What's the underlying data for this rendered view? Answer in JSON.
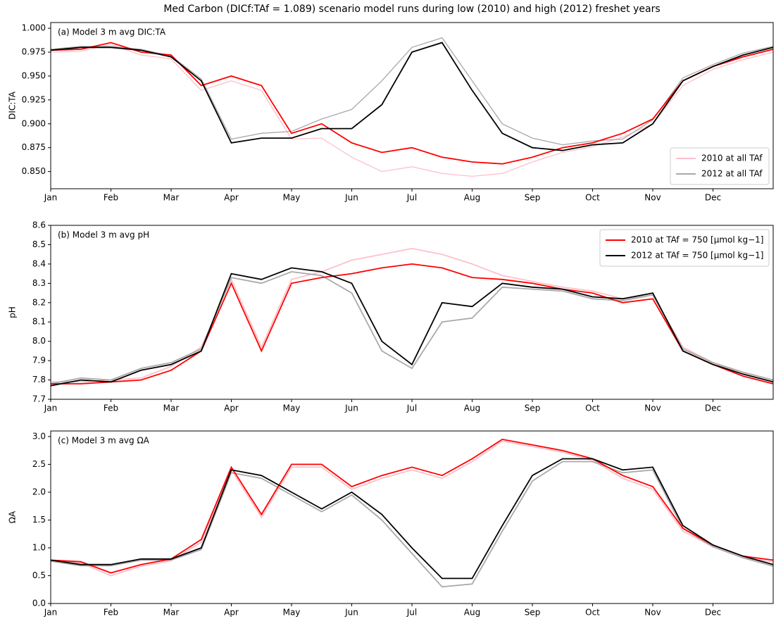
{
  "chart_data": [
    {
      "type": "line",
      "title": "Med Carbon (DICf:TAf = 1.089) scenario model runs during low (2010) and high (2012) freshet years",
      "annotation": "(a) Model 3 m avg DIC:TA",
      "ylabel": "DIC:TA",
      "x": [
        0,
        0.5,
        1,
        1.5,
        2,
        2.5,
        3,
        3.5,
        4,
        4.5,
        5,
        5.5,
        6,
        6.5,
        7,
        7.5,
        8,
        8.5,
        9,
        9.5,
        10,
        10.5,
        11,
        11.5,
        12
      ],
      "xlim": [
        0,
        12
      ],
      "xticks": [
        {
          "value": 0,
          "label": "Jan"
        },
        {
          "value": 1,
          "label": "Feb"
        },
        {
          "value": 2,
          "label": "Mar"
        },
        {
          "value": 3,
          "label": "Apr"
        },
        {
          "value": 4,
          "label": "May"
        },
        {
          "value": 5,
          "label": "Jun"
        },
        {
          "value": 6,
          "label": "Jul"
        },
        {
          "value": 7,
          "label": "Aug"
        },
        {
          "value": 8,
          "label": "Sep"
        },
        {
          "value": 9,
          "label": "Oct"
        },
        {
          "value": 10,
          "label": "Nov"
        },
        {
          "value": 11,
          "label": "Dec"
        }
      ],
      "ylim": [
        0.832,
        1.006
      ],
      "yticks": [
        {
          "value": 0.85,
          "label": "0.850"
        },
        {
          "value": 0.875,
          "label": "0.875"
        },
        {
          "value": 0.9,
          "label": "0.900"
        },
        {
          "value": 0.925,
          "label": "0.925"
        },
        {
          "value": 0.95,
          "label": "0.950"
        },
        {
          "value": 0.975,
          "label": "0.975"
        },
        {
          "value": 1.0,
          "label": "1.000"
        }
      ],
      "legend": "lower right",
      "series": [
        {
          "name": "2010 at all TAf",
          "color": "#ffc0cb",
          "values": [
            0.975,
            0.976,
            0.983,
            0.972,
            0.968,
            0.935,
            0.945,
            0.935,
            0.884,
            0.885,
            0.865,
            0.85,
            0.855,
            0.848,
            0.845,
            0.848,
            0.86,
            0.87,
            0.876,
            0.886,
            0.9,
            0.94,
            0.957,
            0.967,
            0.975
          ]
        },
        {
          "name": "2012 at all TAf",
          "color": "#a9a9a9",
          "values": [
            0.978,
            0.981,
            0.981,
            0.978,
            0.971,
            0.947,
            0.884,
            0.89,
            0.892,
            0.905,
            0.915,
            0.945,
            0.98,
            0.99,
            0.945,
            0.9,
            0.885,
            0.878,
            0.882,
            0.884,
            0.904,
            0.948,
            0.962,
            0.974,
            0.981
          ]
        },
        {
          "color": "#ff0000",
          "values": [
            0.977,
            0.978,
            0.985,
            0.975,
            0.972,
            0.94,
            0.95,
            0.94,
            0.89,
            0.9,
            0.88,
            0.87,
            0.875,
            0.865,
            0.86,
            0.858,
            0.865,
            0.875,
            0.88,
            0.89,
            0.905,
            0.945,
            0.96,
            0.97,
            0.978
          ]
        },
        {
          "color": "#000000",
          "values": [
            0.977,
            0.98,
            0.98,
            0.977,
            0.97,
            0.945,
            0.88,
            0.885,
            0.885,
            0.895,
            0.895,
            0.92,
            0.975,
            0.985,
            0.935,
            0.89,
            0.875,
            0.872,
            0.878,
            0.88,
            0.9,
            0.945,
            0.96,
            0.972,
            0.98
          ]
        }
      ]
    },
    {
      "type": "line",
      "annotation": "(b) Model 3 m avg pH",
      "ylabel": "pH",
      "x": [
        0,
        0.5,
        1,
        1.5,
        2,
        2.5,
        3,
        3.5,
        4,
        4.5,
        5,
        5.5,
        6,
        6.5,
        7,
        7.5,
        8,
        8.5,
        9,
        9.5,
        10,
        10.5,
        11,
        11.5,
        12
      ],
      "xlim": [
        0,
        12
      ],
      "xticks": [
        {
          "value": 0,
          "label": "Jan"
        },
        {
          "value": 1,
          "label": "Feb"
        },
        {
          "value": 2,
          "label": "Mar"
        },
        {
          "value": 3,
          "label": "Apr"
        },
        {
          "value": 4,
          "label": "May"
        },
        {
          "value": 5,
          "label": "Jun"
        },
        {
          "value": 6,
          "label": "Jul"
        },
        {
          "value": 7,
          "label": "Aug"
        },
        {
          "value": 8,
          "label": "Sep"
        },
        {
          "value": 9,
          "label": "Oct"
        },
        {
          "value": 10,
          "label": "Nov"
        },
        {
          "value": 11,
          "label": "Dec"
        }
      ],
      "ylim": [
        7.7,
        8.6
      ],
      "yticks": [
        7.7,
        7.8,
        7.9,
        {
          "value": 8,
          "label": "8.0"
        },
        8.1,
        8.2,
        8.3,
        8.4,
        8.5,
        8.6
      ],
      "legend": "upper right",
      "series": [
        {
          "color": "#ffc0cb",
          "values": [
            7.79,
            7.79,
            7.8,
            7.81,
            7.87,
            7.97,
            8.32,
            7.97,
            8.32,
            8.36,
            8.42,
            8.45,
            8.48,
            8.45,
            8.4,
            8.34,
            8.31,
            8.28,
            8.26,
            8.22,
            8.24,
            7.97,
            7.89,
            7.83,
            7.79
          ]
        },
        {
          "color": "#a9a9a9",
          "values": [
            7.78,
            7.81,
            7.8,
            7.86,
            7.89,
            7.96,
            8.33,
            8.3,
            8.36,
            8.34,
            8.25,
            7.95,
            7.86,
            8.1,
            8.12,
            8.28,
            8.27,
            8.26,
            8.22,
            8.21,
            8.24,
            7.96,
            7.89,
            7.84,
            7.8
          ]
        },
        {
          "name": "2010 at TAf = 750 [μmol kg−1]",
          "color": "#ff0000",
          "values": [
            7.78,
            7.78,
            7.79,
            7.8,
            7.85,
            7.95,
            8.3,
            7.95,
            8.3,
            8.33,
            8.35,
            8.38,
            8.4,
            8.38,
            8.33,
            8.32,
            8.3,
            8.27,
            8.25,
            8.2,
            8.22,
            7.95,
            7.88,
            7.82,
            7.78
          ]
        },
        {
          "name": "2012 at TAf = 750 [μmol kg−1]",
          "color": "#000000",
          "values": [
            7.77,
            7.8,
            7.79,
            7.85,
            7.88,
            7.95,
            8.35,
            8.32,
            8.38,
            8.36,
            8.3,
            8.0,
            7.88,
            8.2,
            8.18,
            8.3,
            8.28,
            8.27,
            8.23,
            8.22,
            8.25,
            7.95,
            7.88,
            7.83,
            7.79
          ]
        }
      ]
    },
    {
      "type": "line",
      "annotation": "(c) Model 3 m avg ΩA",
      "ylabel": "ΩA",
      "x": [
        0,
        0.5,
        1,
        1.5,
        2,
        2.5,
        3,
        3.5,
        4,
        4.5,
        5,
        5.5,
        6,
        6.5,
        7,
        7.5,
        8,
        8.5,
        9,
        9.5,
        10,
        10.5,
        11,
        11.5,
        12
      ],
      "xlim": [
        0,
        12
      ],
      "xticks": [
        {
          "value": 0,
          "label": "Jan"
        },
        {
          "value": 1,
          "label": "Feb"
        },
        {
          "value": 2,
          "label": "Mar"
        },
        {
          "value": 3,
          "label": "Apr"
        },
        {
          "value": 4,
          "label": "May"
        },
        {
          "value": 5,
          "label": "Jun"
        },
        {
          "value": 6,
          "label": "Jul"
        },
        {
          "value": 7,
          "label": "Aug"
        },
        {
          "value": 8,
          "label": "Sep"
        },
        {
          "value": 9,
          "label": "Oct"
        },
        {
          "value": 10,
          "label": "Nov"
        },
        {
          "value": 11,
          "label": "Dec"
        }
      ],
      "ylim": [
        0,
        3.1
      ],
      "yticks": [
        {
          "value": 0,
          "label": "0.0"
        },
        0.5,
        {
          "value": 1,
          "label": "1.0"
        },
        1.5,
        {
          "value": 2,
          "label": "2.0"
        },
        2.5,
        {
          "value": 3,
          "label": "3.0"
        }
      ],
      "series": [
        {
          "color": "#ffc0cb",
          "values": [
            0.76,
            0.73,
            0.5,
            0.67,
            0.77,
            1.1,
            2.4,
            1.55,
            2.45,
            2.45,
            2.05,
            2.25,
            2.4,
            2.25,
            2.55,
            2.92,
            2.82,
            2.72,
            2.57,
            2.25,
            2.05,
            1.3,
            1.02,
            0.82,
            0.75
          ]
        },
        {
          "color": "#a9a9a9",
          "values": [
            0.76,
            0.68,
            0.68,
            0.78,
            0.78,
            0.97,
            2.35,
            2.25,
            1.95,
            1.65,
            1.95,
            1.5,
            0.9,
            0.3,
            0.35,
            1.3,
            2.2,
            2.55,
            2.55,
            2.35,
            2.4,
            1.35,
            1.02,
            0.82,
            0.67
          ]
        },
        {
          "color": "#ff0000",
          "values": [
            0.78,
            0.75,
            0.55,
            0.7,
            0.8,
            1.15,
            2.45,
            1.6,
            2.5,
            2.5,
            2.1,
            2.3,
            2.45,
            2.3,
            2.6,
            2.95,
            2.85,
            2.75,
            2.6,
            2.3,
            2.1,
            1.35,
            1.05,
            0.85,
            0.78
          ]
        },
        {
          "color": "#000000",
          "values": [
            0.78,
            0.7,
            0.7,
            0.8,
            0.8,
            1.0,
            2.4,
            2.3,
            2.0,
            1.7,
            2.0,
            1.6,
            1.0,
            0.45,
            0.45,
            1.4,
            2.3,
            2.6,
            2.6,
            2.4,
            2.45,
            1.4,
            1.05,
            0.85,
            0.7
          ]
        }
      ]
    }
  ]
}
